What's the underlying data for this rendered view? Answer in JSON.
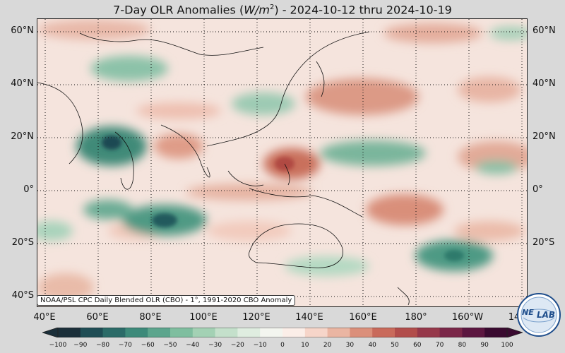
{
  "title": {
    "prefix": "7-Day OLR Anomalies (",
    "var": "W/m",
    "sup": "2",
    "suffix": ") - 2024-10-12 thru 2024-10-19"
  },
  "lat_labels": [
    "60°N",
    "40°N",
    "20°N",
    "0°",
    "20°S",
    "40°S"
  ],
  "lon_labels": [
    "40°E",
    "60°E",
    "80°E",
    "100°E",
    "120°E",
    "140°E",
    "160°E",
    "180°",
    "160°W",
    "14"
  ],
  "source_text": "NOAA/PSL CPC Daily Blended OLR (CBO) - 1°, 1991-2020 CBO Anomaly",
  "colorbar": {
    "ticks": [
      "−100",
      "−90",
      "−80",
      "−70",
      "−60",
      "−50",
      "−40",
      "−30",
      "−20",
      "−10",
      "0",
      "10",
      "20",
      "30",
      "40",
      "50",
      "60",
      "70",
      "80",
      "90",
      "100"
    ],
    "colors": [
      "#1b2f3a",
      "#1f4d55",
      "#2b6b68",
      "#3d8a7a",
      "#5ca58d",
      "#7fbe9f",
      "#a3d1b4",
      "#c4e0cb",
      "#dfede0",
      "#f3f5ef",
      "#fbeee8",
      "#f6d5c9",
      "#eab5a2",
      "#db8f7a",
      "#c96a5b",
      "#b24d4b",
      "#96384a",
      "#7a2648",
      "#5c1640",
      "#3a0a30"
    ]
  },
  "logo": {
    "text_a": "NE",
    "text_b": "LAB"
  }
}
